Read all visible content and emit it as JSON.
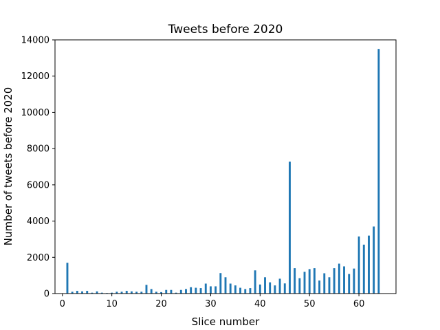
{
  "chart_data": {
    "type": "bar",
    "title": "Tweets before 2020",
    "xlabel": "Slice number",
    "ylabel": "Number of tweets before 2020",
    "xlim": [
      -1.5,
      67.5
    ],
    "ylim": [
      0,
      14000
    ],
    "xticks": [
      0,
      10,
      20,
      30,
      40,
      50,
      60
    ],
    "yticks": [
      0,
      2000,
      4000,
      6000,
      8000,
      10000,
      12000,
      14000
    ],
    "bar_color": "#1f77b4",
    "grid": false,
    "x": [
      1,
      2,
      3,
      4,
      5,
      6,
      7,
      8,
      9,
      10,
      11,
      12,
      13,
      14,
      15,
      16,
      17,
      18,
      19,
      20,
      21,
      22,
      23,
      24,
      25,
      26,
      27,
      28,
      29,
      30,
      31,
      32,
      33,
      34,
      35,
      36,
      37,
      38,
      39,
      40,
      41,
      42,
      43,
      44,
      45,
      46,
      47,
      48,
      49,
      50,
      51,
      52,
      53,
      54,
      55,
      56,
      57,
      58,
      59,
      60,
      61,
      62,
      63,
      64
    ],
    "values": [
      1700,
      100,
      150,
      120,
      150,
      50,
      120,
      50,
      30,
      50,
      100,
      100,
      150,
      120,
      100,
      100,
      480,
      250,
      100,
      80,
      200,
      200,
      50,
      200,
      250,
      350,
      320,
      300,
      550,
      400,
      400,
      1130,
      900,
      550,
      450,
      320,
      250,
      300,
      1280,
      500,
      900,
      620,
      450,
      820,
      560,
      7280,
      1400,
      850,
      1200,
      1350,
      1400,
      720,
      1120,
      900,
      1400,
      1650,
      1500,
      1080,
      1380,
      3150,
      2700,
      3200,
      3700,
      13500
    ]
  }
}
